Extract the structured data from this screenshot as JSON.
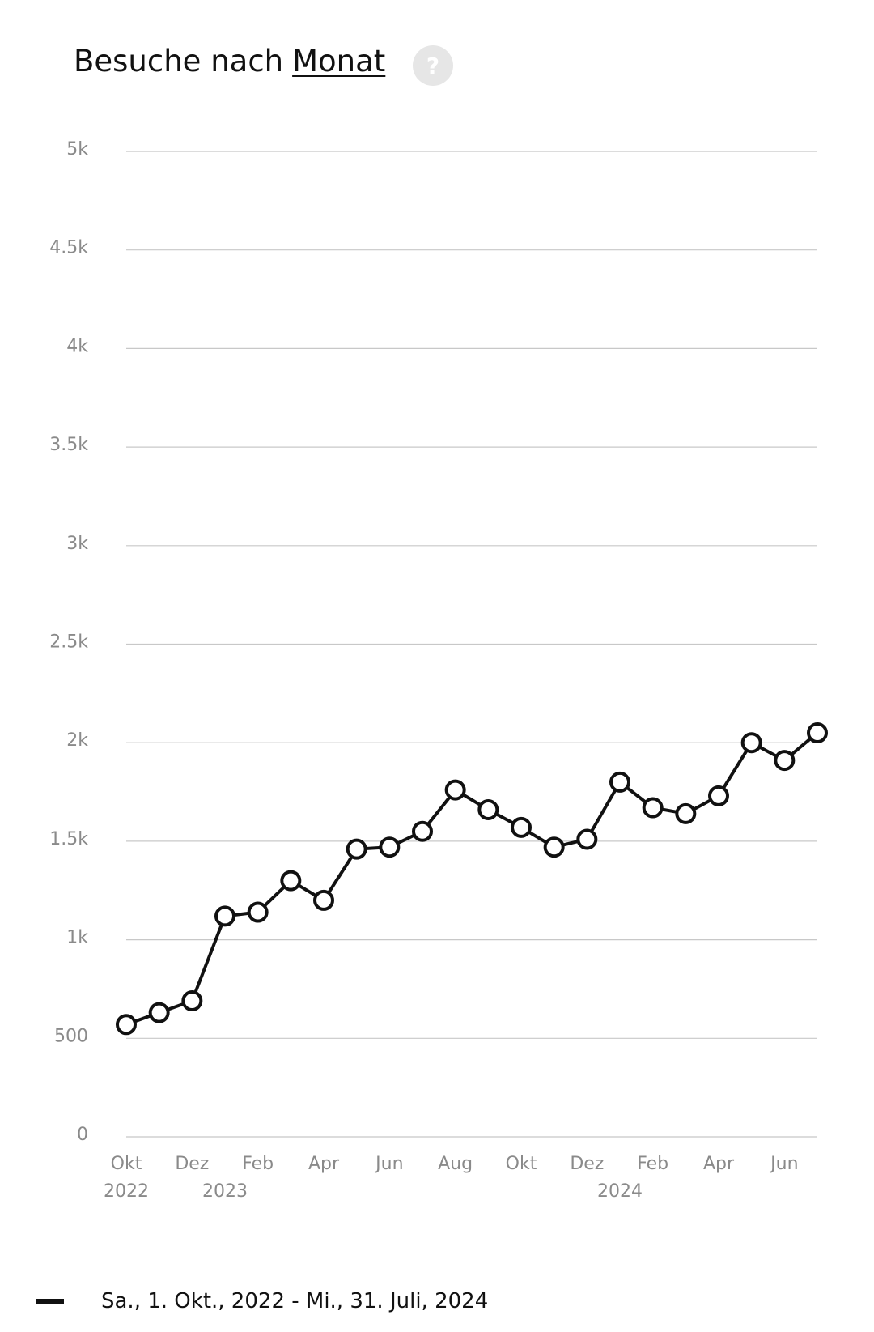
{
  "header": {
    "title": "Besuche nach",
    "title_link": "Monat",
    "help_icon": "?"
  },
  "chart_data": {
    "type": "line",
    "categories": [
      "Okt",
      null,
      "Dez",
      null,
      "Feb",
      null,
      "Apr",
      null,
      "Jun",
      null,
      "Aug",
      null,
      "Okt",
      null,
      "Dez",
      null,
      "Feb",
      null,
      "Apr",
      null,
      "Jun",
      null
    ],
    "category_years": [
      "2022",
      null,
      null,
      "2023",
      null,
      null,
      null,
      null,
      null,
      null,
      null,
      null,
      null,
      null,
      null,
      "2024",
      null,
      null,
      null,
      null,
      null,
      null
    ],
    "series": [
      {
        "name": "Sa., 1. Okt., 2022 - Mi., 31. Juli, 2024",
        "color": "#111111",
        "values": [
          570,
          630,
          690,
          1120,
          1140,
          1300,
          1200,
          1460,
          1470,
          1550,
          1760,
          1660,
          1570,
          1470,
          1510,
          1800,
          1670,
          1640,
          1730,
          2000,
          1910,
          2050
        ]
      }
    ],
    "ylim": [
      0,
      5000
    ],
    "yticks": [
      0,
      500,
      {
        "value": 1000,
        "label": "1k"
      },
      {
        "value": 1500,
        "label": "1.5k"
      },
      {
        "value": 2000,
        "label": "2k"
      },
      {
        "value": 2500,
        "label": "2.5k"
      },
      {
        "value": 3000,
        "label": "3k"
      },
      {
        "value": 3500,
        "label": "3.5k"
      },
      {
        "value": 4000,
        "label": "4k"
      },
      {
        "value": 4500,
        "label": "4.5k"
      },
      {
        "value": 5000,
        "label": "5k"
      }
    ],
    "grid": true
  }
}
